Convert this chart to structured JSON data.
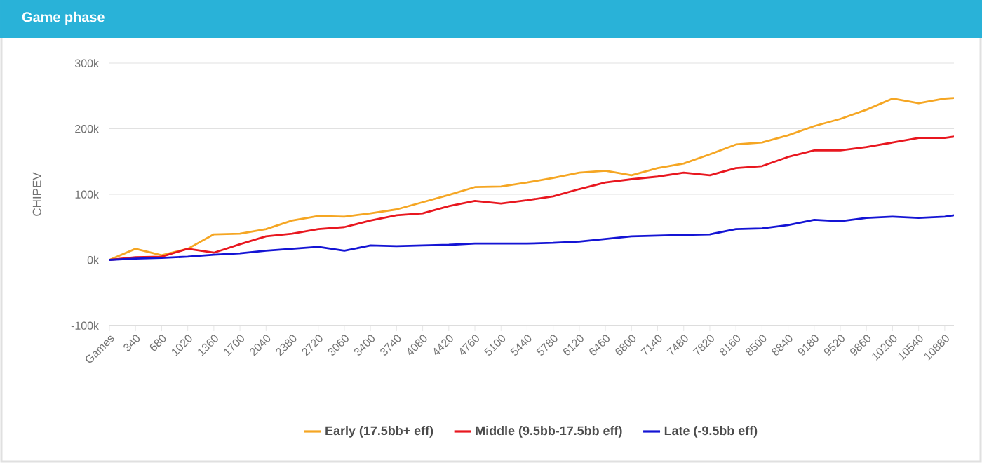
{
  "chart_data": {
    "type": "line",
    "title": "Game phase",
    "ylabel": "CHIPEV",
    "x": [
      0,
      340,
      680,
      1020,
      1360,
      1700,
      2040,
      2380,
      2720,
      3060,
      3400,
      3740,
      4080,
      4420,
      4760,
      5100,
      5440,
      5780,
      6120,
      6460,
      6800,
      7140,
      7480,
      7820,
      8160,
      8500,
      8840,
      9180,
      9520,
      9860,
      10200,
      10540,
      10880,
      11000
    ],
    "series": [
      {
        "name": "Early (17.5bb+ eff)",
        "color": "#f5a623",
        "values": [
          0,
          17000,
          7000,
          17000,
          39000,
          40000,
          47000,
          60000,
          67000,
          66000,
          71000,
          77000,
          88000,
          99000,
          111000,
          112000,
          118000,
          125000,
          133000,
          136000,
          129000,
          140000,
          147000,
          161000,
          176000,
          179000,
          190000,
          204000,
          215000,
          229000,
          246000,
          239000,
          246000,
          247000
        ]
      },
      {
        "name": "Middle (9.5bb-17.5bb eff)",
        "color": "#e8171f",
        "values": [
          0,
          4000,
          5000,
          17000,
          11000,
          24000,
          36000,
          40000,
          47000,
          50000,
          60000,
          68000,
          71000,
          82000,
          90000,
          86000,
          91000,
          97000,
          108000,
          118000,
          123000,
          127000,
          133000,
          129000,
          140000,
          143000,
          157000,
          167000,
          167000,
          172000,
          179000,
          186000,
          186000,
          188000
        ]
      },
      {
        "name": "Late (-9.5bb eff)",
        "color": "#1414d4",
        "values": [
          0,
          2000,
          3000,
          5000,
          8000,
          10000,
          14000,
          17000,
          20000,
          14000,
          22000,
          21000,
          22000,
          23000,
          25000,
          25000,
          25000,
          26000,
          28000,
          32000,
          36000,
          37000,
          38000,
          39000,
          47000,
          48000,
          53000,
          61000,
          59000,
          64000,
          66000,
          64000,
          66000,
          68000
        ]
      }
    ],
    "xlim": [
      0,
      11000
    ],
    "xticks": [
      {
        "value": 0,
        "label": "Games"
      },
      340,
      680,
      1020,
      1360,
      1700,
      2040,
      2380,
      2720,
      3060,
      3400,
      3740,
      4080,
      4420,
      4760,
      5100,
      5440,
      5780,
      6120,
      6460,
      6800,
      7140,
      7480,
      7820,
      8160,
      8500,
      8840,
      9180,
      9520,
      9860,
      10200,
      10540,
      10880
    ],
    "ylim": [
      -100000,
      300000
    ],
    "yticks": [
      {
        "value": -100000,
        "label": "-100k"
      },
      {
        "value": 0,
        "label": "0k"
      },
      {
        "value": 100000,
        "label": "100k"
      },
      {
        "value": 200000,
        "label": "200k"
      },
      {
        "value": 300000,
        "label": "300k"
      }
    ],
    "grid": "y",
    "legend": "bottom"
  }
}
